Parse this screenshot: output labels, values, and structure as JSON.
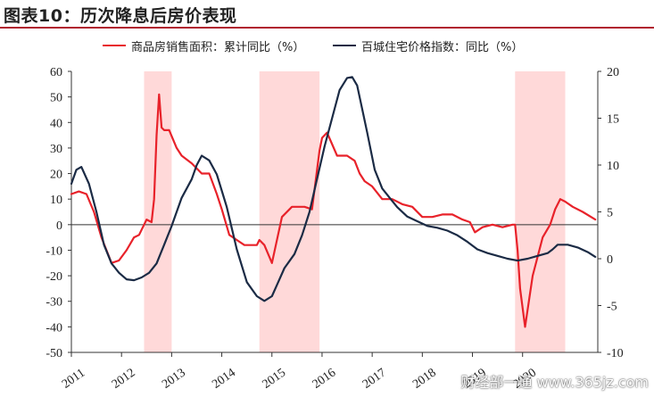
{
  "title": "图表10：历次降息后房价表现",
  "colors": {
    "title_rule": "#b01e2f",
    "sales_line": "#e8222a",
    "price_line": "#1b2b45",
    "shade": "#ffd9d9"
  },
  "chart_data": {
    "type": "line",
    "x_ticks": [
      "2011",
      "2012",
      "2013",
      "2014",
      "2015",
      "2016",
      "2017",
      "2018",
      "2019",
      "2020"
    ],
    "y_left_ticks": [
      "60",
      "50",
      "40",
      "30",
      "20",
      "10",
      "0",
      "-10",
      "-20",
      "-30",
      "-40",
      "-50"
    ],
    "y_right_ticks": [
      "20",
      "15",
      "10",
      "5",
      "0",
      "-5",
      "-10"
    ],
    "ylim_left": [
      -50,
      60
    ],
    "ylim_right": [
      -10,
      20
    ],
    "xlim": [
      2011.0,
      2021.5
    ],
    "grid": false,
    "legend_position": "top",
    "shaded_periods": [
      [
        2012.45,
        2013.0
      ],
      [
        2014.75,
        2015.95
      ],
      [
        2019.85,
        2020.85
      ]
    ],
    "series": [
      {
        "name": "商品房销售面积：累计同比（%）",
        "axis": "left",
        "color": "#e8222a",
        "x": [
          2011.0,
          2011.15,
          2011.3,
          2011.45,
          2011.6,
          2011.8,
          2011.95,
          2012.1,
          2012.25,
          2012.35,
          2012.45,
          2012.5,
          2012.6,
          2012.65,
          2012.7,
          2012.75,
          2012.8,
          2012.85,
          2012.95,
          2013.1,
          2013.2,
          2013.4,
          2013.6,
          2013.75,
          2013.9,
          2014.0,
          2014.15,
          2014.3,
          2014.45,
          2014.6,
          2014.7,
          2014.75,
          2014.85,
          2015.0,
          2015.2,
          2015.4,
          2015.55,
          2015.65,
          2015.8,
          2015.95,
          2016.0,
          2016.1,
          2016.3,
          2016.5,
          2016.65,
          2016.75,
          2016.85,
          2017.0,
          2017.2,
          2017.4,
          2017.6,
          2017.8,
          2018.0,
          2018.2,
          2018.4,
          2018.6,
          2018.8,
          2018.95,
          2019.05,
          2019.2,
          2019.4,
          2019.6,
          2019.8,
          2019.85,
          2019.9,
          2019.95,
          2020.05,
          2020.2,
          2020.4,
          2020.55,
          2020.65,
          2020.75,
          2020.85,
          2021.0,
          2021.2,
          2021.45
        ],
        "values": [
          12,
          13,
          12,
          5,
          -5,
          -15,
          -14,
          -10,
          -5,
          -4,
          0,
          2,
          1,
          10,
          35,
          51,
          38,
          37,
          37,
          30,
          27,
          24,
          20,
          20,
          12,
          6,
          -4,
          -6,
          -8,
          -8,
          -8,
          -6,
          -8,
          -15,
          3,
          7,
          7,
          7,
          6,
          29,
          34,
          36,
          27,
          27,
          25,
          20,
          17,
          15,
          10,
          10,
          8,
          7,
          3,
          3,
          4,
          4,
          2,
          1,
          -3,
          -1,
          0,
          -1,
          0,
          0,
          -10,
          -25,
          -40,
          -20,
          -5,
          0,
          6,
          10,
          9,
          7,
          5,
          2
        ]
      },
      {
        "name": "百城住宅价格指数：同比（%）",
        "axis": "right",
        "color": "#1b2b45",
        "x": [
          2011.0,
          2011.1,
          2011.2,
          2011.35,
          2011.5,
          2011.65,
          2011.8,
          2011.95,
          2012.1,
          2012.25,
          2012.4,
          2012.55,
          2012.7,
          2012.85,
          2013.0,
          2013.2,
          2013.4,
          2013.5,
          2013.6,
          2013.75,
          2013.9,
          2014.1,
          2014.3,
          2014.5,
          2014.7,
          2014.85,
          2015.0,
          2015.1,
          2015.25,
          2015.45,
          2015.6,
          2015.75,
          2015.9,
          2016.05,
          2016.2,
          2016.35,
          2016.5,
          2016.6,
          2016.7,
          2016.8,
          2016.9,
          2017.05,
          2017.2,
          2017.35,
          2017.5,
          2017.7,
          2017.9,
          2018.1,
          2018.3,
          2018.5,
          2018.7,
          2018.9,
          2019.1,
          2019.3,
          2019.5,
          2019.7,
          2019.9,
          2020.1,
          2020.3,
          2020.5,
          2020.6,
          2020.7,
          2020.9,
          2021.1,
          2021.3,
          2021.45
        ],
        "values": [
          8,
          9.5,
          9.8,
          8,
          5,
          1.5,
          -0.5,
          -1.5,
          -2.2,
          -2.3,
          -2.0,
          -1.5,
          -0.5,
          1.5,
          3.5,
          6.5,
          8.5,
          10,
          11,
          10.5,
          9,
          5.5,
          1,
          -2.5,
          -4,
          -4.5,
          -4,
          -2.8,
          -1,
          0.5,
          2.5,
          5,
          8.5,
          12,
          15,
          18,
          19.3,
          19.4,
          18.5,
          16,
          13.5,
          9.5,
          7.5,
          6.5,
          5.5,
          4.5,
          4,
          3.5,
          3.3,
          3.0,
          2.5,
          1.8,
          1.0,
          0.6,
          0.3,
          0.0,
          -0.2,
          0.0,
          0.3,
          0.6,
          1.0,
          1.5,
          1.5,
          1.2,
          0.7,
          0.2
        ]
      }
    ]
  },
  "watermark": "财经部一通 www.365jz.com"
}
